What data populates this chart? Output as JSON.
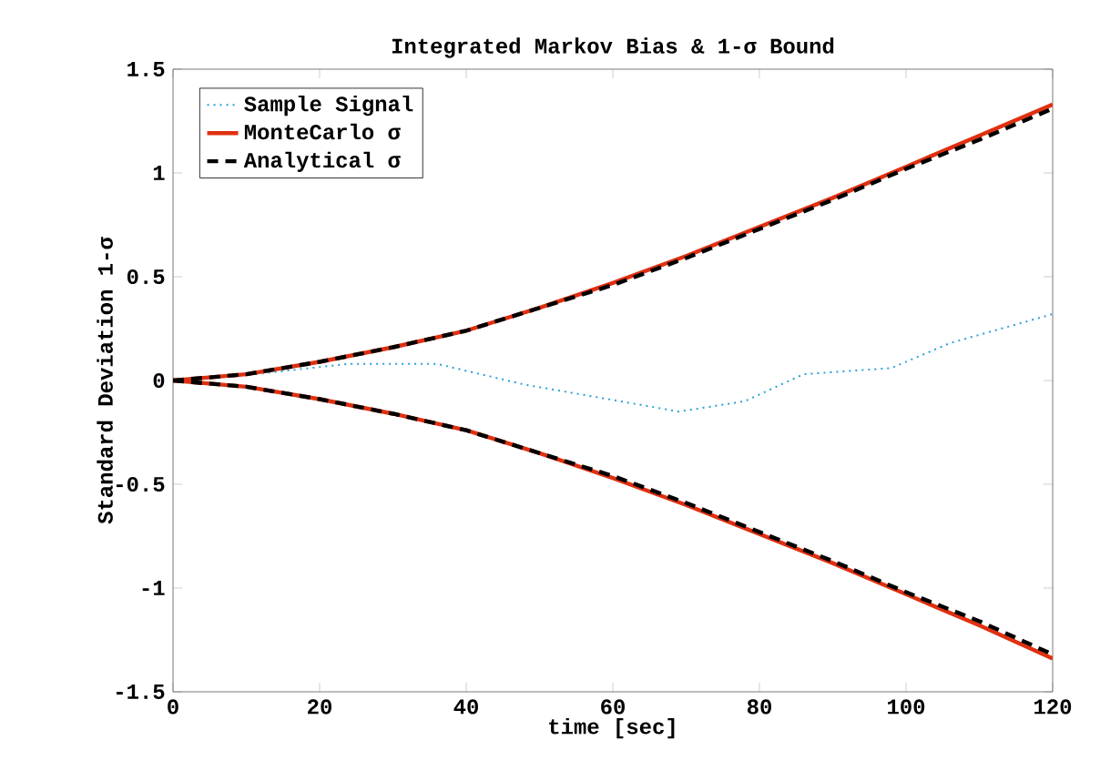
{
  "chart_data": {
    "type": "line",
    "title": "Integrated Markov Bias & 1-σ Bound",
    "xlabel": "time [sec]",
    "ylabel": "Standard Deviation 1-σ",
    "xlim": [
      0,
      120
    ],
    "ylim": [
      -1.5,
      1.5
    ],
    "xticks": [
      0,
      20,
      40,
      60,
      80,
      100,
      120
    ],
    "yticks": [
      -1.5,
      -1,
      -0.5,
      0,
      0.5,
      1,
      1.5
    ],
    "grid": false,
    "legend": "top left",
    "series": [
      {
        "name": "Sample Signal",
        "color": "#2a9fd8",
        "line_style": "dotted",
        "x": [
          0,
          11,
          24,
          36,
          48,
          61,
          69,
          78,
          86,
          98,
          106,
          120
        ],
        "values": [
          0,
          0.03,
          0.08,
          0.08,
          -0.02,
          -0.1,
          -0.15,
          -0.1,
          0.03,
          0.06,
          0.18,
          0.32
        ]
      },
      {
        "name": "MonteCarlo σ",
        "color": "#e03010",
        "line_style": "solid",
        "x": [
          0,
          10,
          20,
          30,
          40,
          50,
          60,
          70,
          80,
          90,
          100,
          110,
          120
        ],
        "values": [
          0,
          0.03,
          0.09,
          0.16,
          0.24,
          0.35,
          0.47,
          0.6,
          0.74,
          0.88,
          1.03,
          1.18,
          1.33
        ]
      },
      {
        "color": "#e03010",
        "line_style": "solid",
        "x": [
          0,
          10,
          20,
          30,
          40,
          50,
          60,
          70,
          80,
          90,
          100,
          110,
          120
        ],
        "values": [
          0,
          -0.03,
          -0.09,
          -0.16,
          -0.24,
          -0.35,
          -0.47,
          -0.6,
          -0.74,
          -0.88,
          -1.03,
          -1.18,
          -1.34
        ]
      },
      {
        "name": "Analytical σ",
        "color": "#000000",
        "line_style": "dashed",
        "x": [
          0,
          10,
          20,
          30,
          40,
          50,
          60,
          70,
          80,
          90,
          100,
          110,
          120
        ],
        "values": [
          0,
          0.03,
          0.09,
          0.16,
          0.24,
          0.35,
          0.46,
          0.59,
          0.73,
          0.87,
          1.02,
          1.16,
          1.31
        ]
      },
      {
        "color": "#000000",
        "line_style": "dashed",
        "x": [
          0,
          10,
          20,
          30,
          40,
          50,
          60,
          70,
          80,
          90,
          100,
          110,
          120
        ],
        "values": [
          0,
          -0.03,
          -0.09,
          -0.16,
          -0.24,
          -0.35,
          -0.46,
          -0.59,
          -0.73,
          -0.87,
          -1.02,
          -1.16,
          -1.32
        ]
      }
    ]
  }
}
